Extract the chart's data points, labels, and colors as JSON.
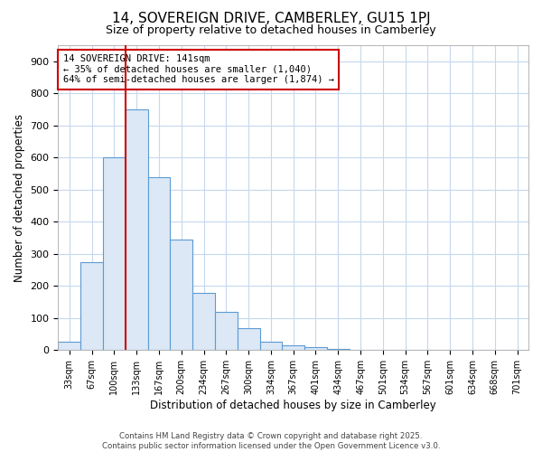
{
  "title": "14, SOVEREIGN DRIVE, CAMBERLEY, GU15 1PJ",
  "subtitle": "Size of property relative to detached houses in Camberley",
  "xlabel": "Distribution of detached houses by size in Camberley",
  "ylabel": "Number of detached properties",
  "categories": [
    "33sqm",
    "67sqm",
    "100sqm",
    "133sqm",
    "167sqm",
    "200sqm",
    "234sqm",
    "267sqm",
    "300sqm",
    "334sqm",
    "367sqm",
    "401sqm",
    "434sqm",
    "467sqm",
    "501sqm",
    "534sqm",
    "567sqm",
    "601sqm",
    "634sqm",
    "668sqm",
    "701sqm"
  ],
  "values": [
    25,
    275,
    600,
    750,
    540,
    345,
    178,
    120,
    68,
    25,
    15,
    10,
    5,
    2,
    2,
    0,
    2,
    0,
    0,
    0,
    0
  ],
  "bar_color": "#dce8f5",
  "bar_edge_color": "#5b9bd5",
  "vline_x": 3.0,
  "vline_color": "#cc0000",
  "annotation_text": "14 SOVEREIGN DRIVE: 141sqm\n← 35% of detached houses are smaller (1,040)\n64% of semi-detached houses are larger (1,874) →",
  "annotation_box_color": "#ffffff",
  "annotation_box_edge": "#cc0000",
  "ylim": [
    0,
    950
  ],
  "yticks": [
    0,
    100,
    200,
    300,
    400,
    500,
    600,
    700,
    800,
    900
  ],
  "bg_color": "#ffffff",
  "grid_color": "#c5d8ee",
  "footer": "Contains HM Land Registry data © Crown copyright and database right 2025.\nContains public sector information licensed under the Open Government Licence v3.0."
}
